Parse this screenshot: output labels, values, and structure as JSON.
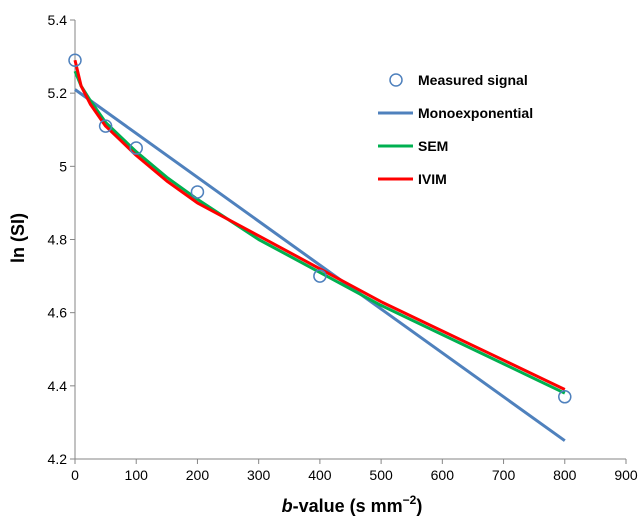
{
  "chart_data": {
    "type": "scatter",
    "title": "",
    "xlabel": {
      "prefix": "b",
      "rest": "-value (s mm",
      "sup": "−2",
      "suffix": ")"
    },
    "ylabel": "ln (SI)",
    "xlim": [
      0,
      900
    ],
    "ylim": [
      4.2,
      5.4
    ],
    "xticks": [
      "0",
      "100",
      "200",
      "300",
      "400",
      "500",
      "600",
      "700",
      "800",
      "900"
    ],
    "yticks": [
      "4.2",
      "4.4",
      "4.6",
      "4.8",
      "5",
      "5.2",
      "5.4"
    ],
    "grid": false,
    "legend_position": "top-right",
    "series": [
      {
        "name": "Measured signal",
        "kind": "markers",
        "color": "#4f81bd",
        "x": [
          0,
          50,
          100,
          200,
          400,
          800
        ],
        "y": [
          5.29,
          5.11,
          5.05,
          4.93,
          4.7,
          4.37
        ]
      },
      {
        "name": "Monoexponential",
        "kind": "line",
        "color": "#4f81bd",
        "x": [
          0,
          800
        ],
        "y": [
          5.21,
          4.25
        ]
      },
      {
        "name": "SEM",
        "kind": "line",
        "color": "#00b050",
        "x": [
          0,
          10,
          25,
          50,
          75,
          100,
          150,
          200,
          300,
          400,
          500,
          600,
          700,
          800
        ],
        "y": [
          5.26,
          5.22,
          5.18,
          5.12,
          5.08,
          5.04,
          4.97,
          4.91,
          4.8,
          4.71,
          4.62,
          4.54,
          4.46,
          4.38
        ]
      },
      {
        "name": "IVIM",
        "kind": "line",
        "color": "#ff0000",
        "x": [
          0,
          10,
          25,
          50,
          75,
          100,
          150,
          200,
          300,
          400,
          500,
          600,
          700,
          800
        ],
        "y": [
          5.29,
          5.22,
          5.17,
          5.11,
          5.07,
          5.03,
          4.96,
          4.9,
          4.81,
          4.72,
          4.63,
          4.55,
          4.47,
          4.39
        ]
      }
    ]
  }
}
